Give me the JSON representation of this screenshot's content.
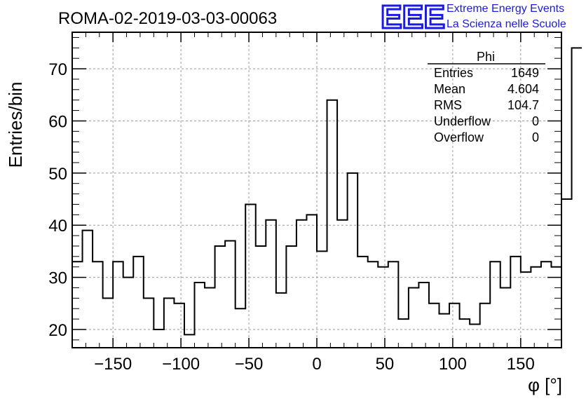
{
  "header": {
    "title": "ROMA-02-2019-03-03-00063",
    "logo_text": "EEE",
    "logo_line1": "Extreme Energy Events",
    "logo_line2": "La Scienza nelle Scuole",
    "logo_color": "#1a1ae6"
  },
  "stats": {
    "name": "Phi",
    "rows": [
      {
        "label": "Entries",
        "value": "1649"
      },
      {
        "label": "Mean",
        "value": "4.604"
      },
      {
        "label": "RMS",
        "value": "104.7"
      },
      {
        "label": "Underflow",
        "value": "0"
      },
      {
        "label": "Overflow",
        "value": "0"
      }
    ]
  },
  "chart_data": {
    "type": "histogram",
    "xlabel": "φ [°]",
    "ylabel": "Entries/bin",
    "xlim": [
      -180,
      180
    ],
    "ylim": [
      16.5,
      77
    ],
    "grid": true,
    "bin_width": 7.5,
    "bin_edges_start": -180,
    "values": [
      33,
      39,
      33,
      26,
      33,
      30,
      34,
      26,
      20,
      26,
      25,
      19,
      29,
      28,
      36,
      37,
      24,
      44,
      36,
      41,
      27,
      36,
      41,
      42,
      35,
      64,
      41,
      50,
      34,
      33,
      32,
      33,
      22,
      28,
      29,
      25,
      23,
      25,
      22,
      21,
      25,
      33,
      28,
      34,
      31,
      32,
      33,
      32,
      45,
      74
    ],
    "x_ticks": [
      -150,
      -100,
      -50,
      0,
      50,
      100,
      150
    ],
    "x_tick_labels": [
      "−150",
      "−100",
      "−50",
      "0",
      "50",
      "100",
      "150"
    ],
    "y_ticks": [
      20,
      30,
      40,
      50,
      60,
      70
    ],
    "y_tick_labels": [
      "20",
      "30",
      "40",
      "50",
      "60",
      "70"
    ],
    "line_color": "#000000"
  }
}
